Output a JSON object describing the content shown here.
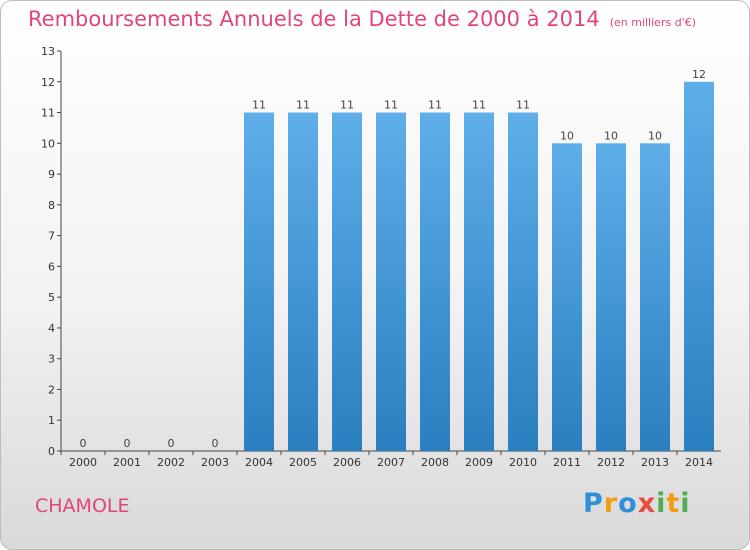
{
  "page": {
    "title": "Remboursements Annuels de la Dette de 2000 à 2014",
    "subtitle": "(en milliers d'€)",
    "commune": "CHAMOLE",
    "logo": {
      "letters": [
        "P",
        "r",
        "o",
        "x",
        "i",
        "t",
        "i"
      ],
      "colors": [
        "#2f8fd8",
        "#f39c12",
        "#2f8fd8",
        "#e74c3c",
        "#4caf50",
        "#f39c12",
        "#4caf50"
      ]
    }
  },
  "colors": {
    "bar_top": "#5eaee9",
    "bar_bottom": "#2a7fc0",
    "title": "#e0457b",
    "axis": "#444444"
  },
  "chart_data": {
    "type": "bar",
    "title": "Remboursements Annuels de la Dette de 2000 à 2014",
    "unit": "(en milliers d'€)",
    "categories": [
      "2000",
      "2001",
      "2002",
      "2003",
      "2004",
      "2005",
      "2006",
      "2007",
      "2008",
      "2009",
      "2010",
      "2011",
      "2012",
      "2013",
      "2014"
    ],
    "values": [
      0,
      0,
      0,
      0,
      11,
      11,
      11,
      11,
      11,
      11,
      11,
      10,
      10,
      10,
      12
    ],
    "ylim": [
      0,
      13
    ],
    "yticks": [
      0,
      1,
      2,
      3,
      4,
      5,
      6,
      7,
      8,
      9,
      10,
      11,
      12,
      13
    ],
    "xlabel": "",
    "ylabel": "",
    "grid": false,
    "data_labels": true
  }
}
